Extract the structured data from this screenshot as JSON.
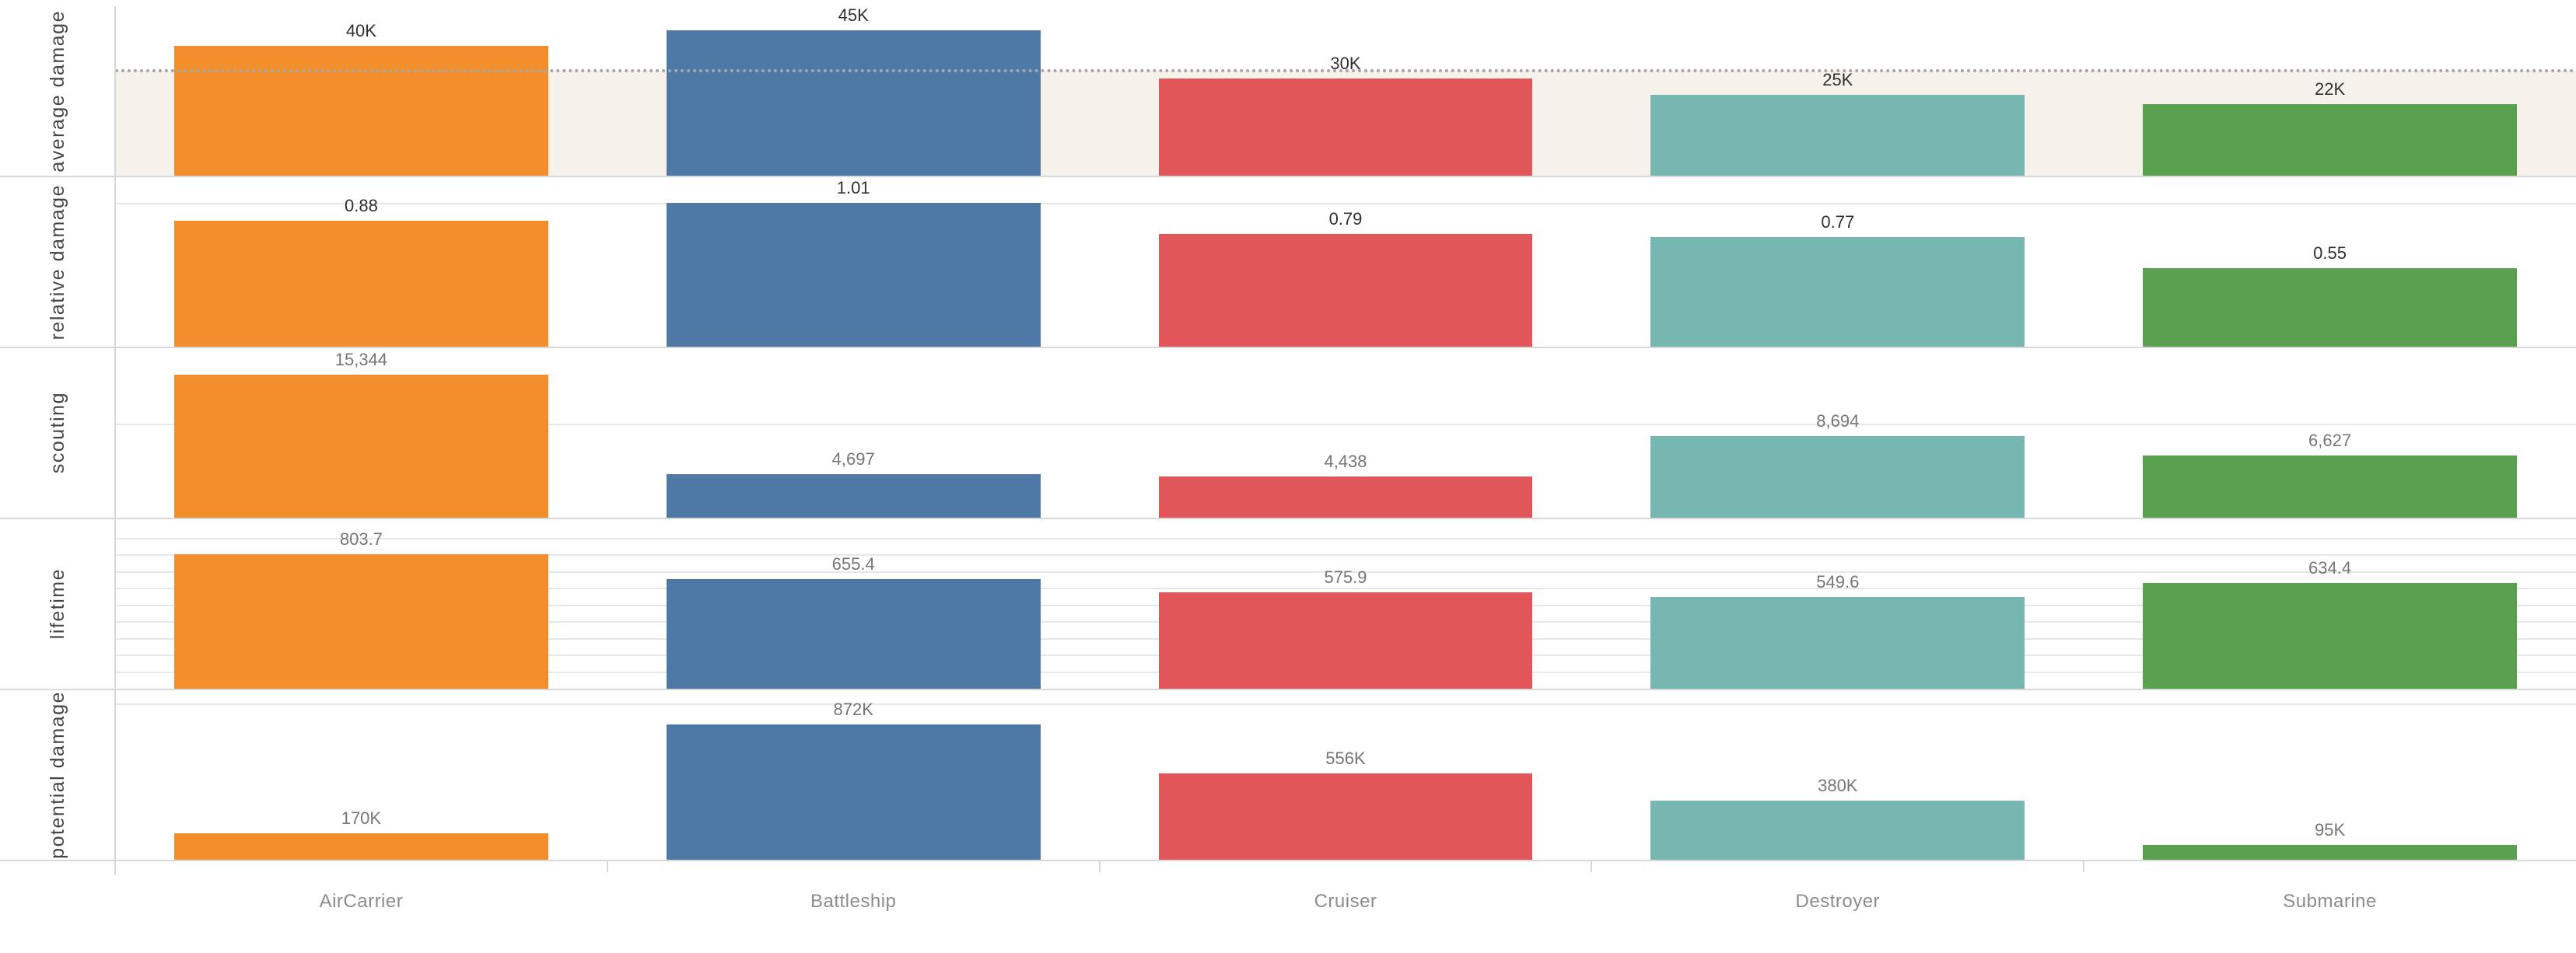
{
  "chart_data": {
    "type": "bar",
    "layout": "small-multiples-rows",
    "title": "",
    "legend": "none",
    "categories": [
      "AirCarrier",
      "Battleship",
      "Cruiser",
      "Destroyer",
      "Submarine"
    ],
    "category_colors": {
      "AirCarrier": "#F28E2B",
      "Battleship": "#4E79A7",
      "Cruiser": "#E15759",
      "Destroyer": "#76B7B2",
      "Submarine": "#59A14F"
    },
    "rows": [
      {
        "row_label": "average damage",
        "values": [
          40000,
          45000,
          30000,
          25000,
          22000
        ],
        "value_labels": [
          "40K",
          "45K",
          "30K",
          "25K",
          "22K"
        ],
        "axis_max": 48500,
        "label_color": "#303030",
        "gridlines": [],
        "reference_line": {
          "value": 32400,
          "style": "dotted",
          "color": "#A6A6A6"
        },
        "reference_band": {
          "from": 0,
          "to": 32400,
          "color": "#F7F1EC"
        }
      },
      {
        "row_label": "relative damage",
        "values": [
          0.88,
          1.01,
          0.79,
          0.77,
          0.55
        ],
        "value_labels": [
          "0.88",
          "1.01",
          "0.79",
          "0.77",
          "0.55"
        ],
        "axis_max": 1.1,
        "label_color": "#303030",
        "gridlines": [
          1.0
        ]
      },
      {
        "row_label": "scouting",
        "values": [
          15344,
          4697,
          4438,
          8694,
          6627
        ],
        "value_labels": [
          "15,344",
          "4,697",
          "4,438",
          "8,694",
          "6,627"
        ],
        "axis_max": 16800,
        "label_color": "#767676",
        "gridlines": [
          10000
        ]
      },
      {
        "row_label": "lifetime",
        "values": [
          803.7,
          655.4,
          575.9,
          549.6,
          634.4
        ],
        "value_labels": [
          "803.7",
          "655.4",
          "575.9",
          "549.6",
          "634.4"
        ],
        "axis_max": 940,
        "label_color": "#767676",
        "gridlines": [
          100,
          200,
          300,
          400,
          500,
          600,
          700,
          800,
          900
        ]
      },
      {
        "row_label": "potential damage",
        "values": [
          170000,
          872000,
          556000,
          380000,
          95000
        ],
        "value_labels": [
          "170K",
          "872K",
          "556K",
          "380K",
          "95K"
        ],
        "axis_max": 1010000,
        "label_color": "#767676",
        "gridlines": [
          1000000
        ]
      }
    ]
  },
  "colors": {
    "row_border": "#D8D8D8",
    "axis_line": "#D8D8D8",
    "gridline": "#E7E7E7",
    "reference_line": "#A6A6A6",
    "reference_band": "#F7F1EC",
    "category_label": "#8C8C8C",
    "row_label": "#464646"
  }
}
